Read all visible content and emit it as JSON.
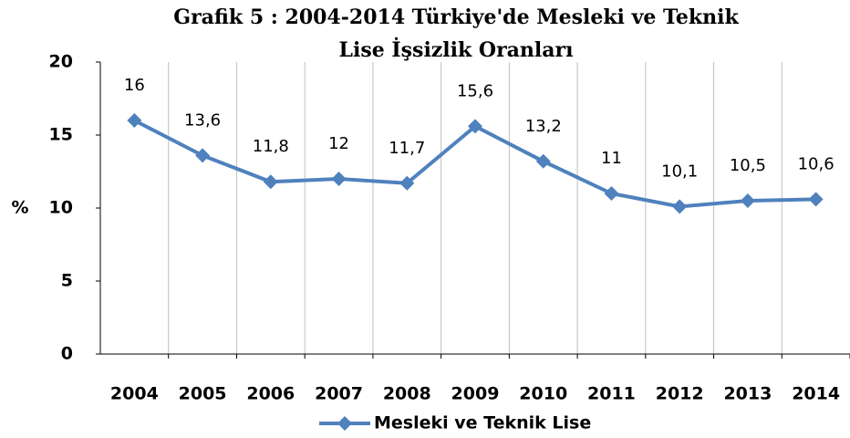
{
  "chart_data": {
    "type": "line",
    "title": [
      "Grafik  5 : 2004-2014 Türkiye'de Mesleki ve Teknik",
      "Lise İşsizlik Oranları"
    ],
    "y_label": "%",
    "categories": [
      "2004",
      "2005",
      "2006",
      "2007",
      "2008",
      "2009",
      "2010",
      "2011",
      "2012",
      "2013",
      "2014"
    ],
    "series": [
      {
        "name": "Mesleki ve Teknik Lise",
        "color": "#4f81bd",
        "values": [
          16,
          13.6,
          11.8,
          12,
          11.7,
          15.6,
          13.2,
          11,
          10.1,
          10.5,
          10.6
        ],
        "value_labels": [
          "16",
          "13,6",
          "11,8",
          "12",
          "11,7",
          "15,6",
          "13,2",
          "11",
          "10,1",
          "10,5",
          "10,6"
        ]
      }
    ],
    "ylim": [
      0,
      20
    ],
    "yticks": [
      0,
      5,
      10,
      15,
      20
    ],
    "vertical_grid": true,
    "legend": "bottom"
  }
}
